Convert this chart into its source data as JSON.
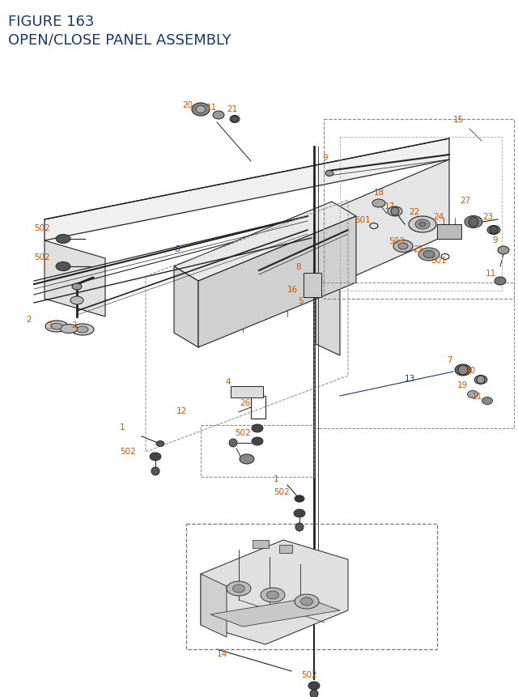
{
  "title_line1": "FIGURE 163",
  "title_line2": "OPEN/CLOSE PANEL ASSEMBLY",
  "title_color": "#1a3a6b",
  "bg_color": "#ffffff",
  "orange_color": "#cc5500",
  "blue_color": "#1a3a6b",
  "gray_color": "#555555",
  "black_color": "#222222",
  "lw_main": 1.0,
  "lw_thin": 0.6,
  "fig_w": 6.4,
  "fig_h": 8.62,
  "dpi": 100
}
